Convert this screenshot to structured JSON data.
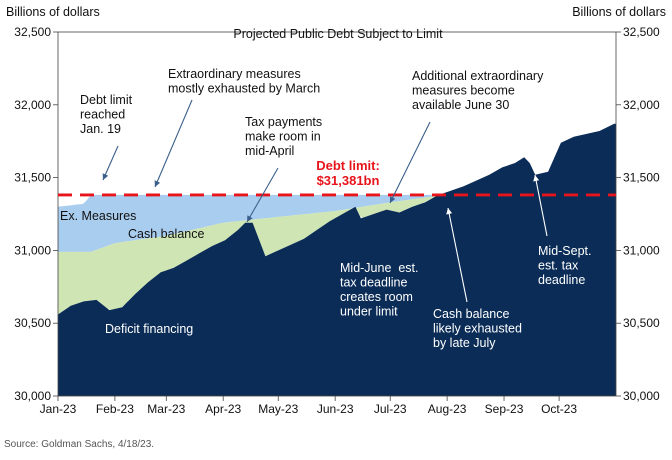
{
  "chart_data": {
    "type": "area",
    "title": "Projected Public Debt Subject to Limit",
    "ylabel_left": "Billions of dollars",
    "ylabel_right": "Billions of dollars",
    "ylim": [
      30000,
      32500
    ],
    "yticks": [
      "30,000",
      "30,500",
      "31,000",
      "31,500",
      "32,000",
      "32,500"
    ],
    "xticks": [
      "Jan-23",
      "Feb-23",
      "Mar-23",
      "Apr-23",
      "May-23",
      "Jun-23",
      "Jul-23",
      "Aug-23",
      "Sep-23",
      "Oct-23"
    ],
    "debt_limit": 31381,
    "debt_limit_label_line1": "Debt limit:",
    "debt_limit_label_line2": "$31,381bn",
    "colors": {
      "deficit_financing": "#0a2c57",
      "cash_balance": "#cfe6b4",
      "ex_measures": "#a9cdee",
      "debt_limit_line": "#e8141b"
    },
    "series": [
      {
        "name": "Deficit financing",
        "x": [
          "2023-01-01",
          "2023-01-08",
          "2023-01-15",
          "2023-01-22",
          "2023-01-29",
          "2023-02-05",
          "2023-02-12",
          "2023-02-19",
          "2023-02-26",
          "2023-03-05",
          "2023-03-12",
          "2023-03-19",
          "2023-03-26",
          "2023-04-02",
          "2023-04-09",
          "2023-04-13",
          "2023-04-17",
          "2023-04-24",
          "2023-05-01",
          "2023-05-08",
          "2023-05-15",
          "2023-05-22",
          "2023-05-29",
          "2023-06-05",
          "2023-06-12",
          "2023-06-15",
          "2023-06-22",
          "2023-06-29",
          "2023-07-06",
          "2023-07-13",
          "2023-07-20",
          "2023-07-27",
          "2023-08-03",
          "2023-08-10",
          "2023-08-17",
          "2023-08-24",
          "2023-08-31",
          "2023-09-07",
          "2023-09-12",
          "2023-09-15",
          "2023-09-18",
          "2023-09-25",
          "2023-10-02",
          "2023-10-09",
          "2023-10-16",
          "2023-10-23",
          "2023-10-31"
        ],
        "values": [
          30560,
          30620,
          30650,
          30660,
          30590,
          30610,
          30700,
          30780,
          30850,
          30880,
          30930,
          30980,
          31030,
          31070,
          31140,
          31190,
          31190,
          30960,
          31000,
          31040,
          31080,
          31140,
          31200,
          31250,
          31300,
          31220,
          31250,
          31280,
          31260,
          31300,
          31330,
          31380,
          31410,
          31440,
          31480,
          31520,
          31570,
          31600,
          31640,
          31600,
          31520,
          31540,
          31740,
          31780,
          31800,
          31820,
          31870
        ]
      },
      {
        "name": "Cash balance",
        "x": [
          "2023-01-01",
          "2023-01-19",
          "2023-02-01",
          "2023-03-01",
          "2023-04-01",
          "2023-05-01",
          "2023-06-01",
          "2023-07-01",
          "2023-07-31"
        ],
        "values": [
          30990,
          30990,
          31050,
          31100,
          31190,
          31230,
          31270,
          31330,
          31381
        ]
      },
      {
        "name": "Ex. Measures",
        "x": [
          "2023-01-01",
          "2023-01-15",
          "2023-01-19",
          "2023-03-01",
          "2023-04-15",
          "2023-07-15",
          "2023-07-31"
        ],
        "values": [
          31300,
          31320,
          31381,
          31381,
          31381,
          31381,
          31381
        ]
      }
    ],
    "annotations": [
      {
        "id": "debt-limit-reached",
        "lines": [
          "Debt limit",
          "reached",
          "Jan. 19"
        ]
      },
      {
        "id": "extraordinary-exhausted",
        "lines": [
          "Extraordinary measures",
          "mostly exhausted by March"
        ]
      },
      {
        "id": "tax-payments",
        "lines": [
          "Tax payments",
          "make room in",
          "mid-April"
        ]
      },
      {
        "id": "additional-extraordinary",
        "lines": [
          "Additional extraordinary",
          "measures become",
          "available June 30"
        ]
      },
      {
        "id": "mid-june",
        "lines": [
          "Mid-June  est.",
          "tax deadline",
          "creates room",
          "under limit"
        ]
      },
      {
        "id": "cash-exhausted",
        "lines": [
          "Cash balance",
          "likely exhausted",
          "by late July"
        ]
      },
      {
        "id": "mid-sept",
        "lines": [
          "Mid-Sept.",
          "est. tax",
          "deadline"
        ]
      }
    ]
  },
  "labels": {
    "ex_measures": "Ex. Measures",
    "cash_balance": "Cash balance",
    "deficit_financing": "Deficit financing"
  },
  "source": "Source: Goldman Sachs, 4/18/23."
}
